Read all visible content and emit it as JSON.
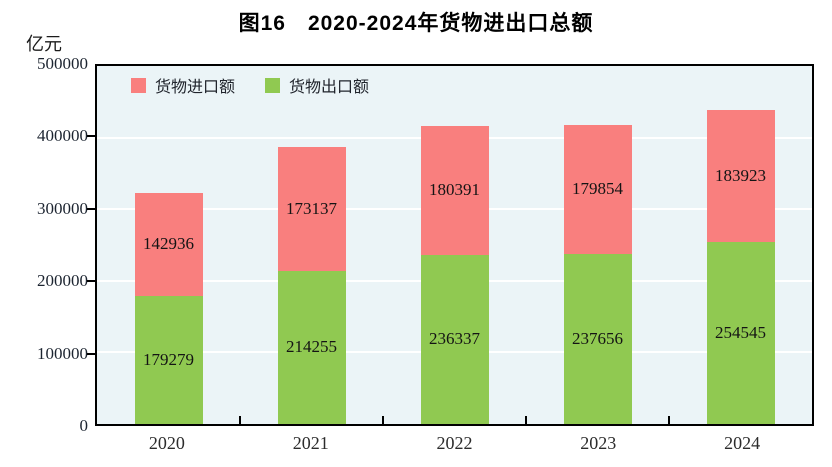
{
  "title": "图16　2020-2024年货物进出口总额",
  "unit_label": "亿元",
  "legend": [
    {
      "label": "货物进口额",
      "color": "#f97f7e"
    },
    {
      "label": "货物出口额",
      "color": "#90c951"
    }
  ],
  "chart_data": {
    "type": "bar",
    "stacked": true,
    "title": "图16　2020-2024年货物进出口总额",
    "ylabel": "亿元",
    "categories": [
      "2020",
      "2021",
      "2022",
      "2023",
      "2024"
    ],
    "series": [
      {
        "name": "货物出口额",
        "color": "#90c951",
        "values": [
          179279,
          214255,
          236337,
          237656,
          254545
        ]
      },
      {
        "name": "货物进口额",
        "color": "#f97f7e",
        "values": [
          142936,
          173137,
          180391,
          179854,
          183923
        ]
      }
    ],
    "ylim": [
      0,
      500000
    ],
    "ytick_step": 100000,
    "ytick_labels": [
      "0",
      "100000",
      "200000",
      "300000",
      "400000",
      "500000"
    ],
    "grid": true,
    "grid_color": "#ffffff",
    "plot_bg": "#ebf4f7",
    "legend_position": "top-left-inside"
  }
}
